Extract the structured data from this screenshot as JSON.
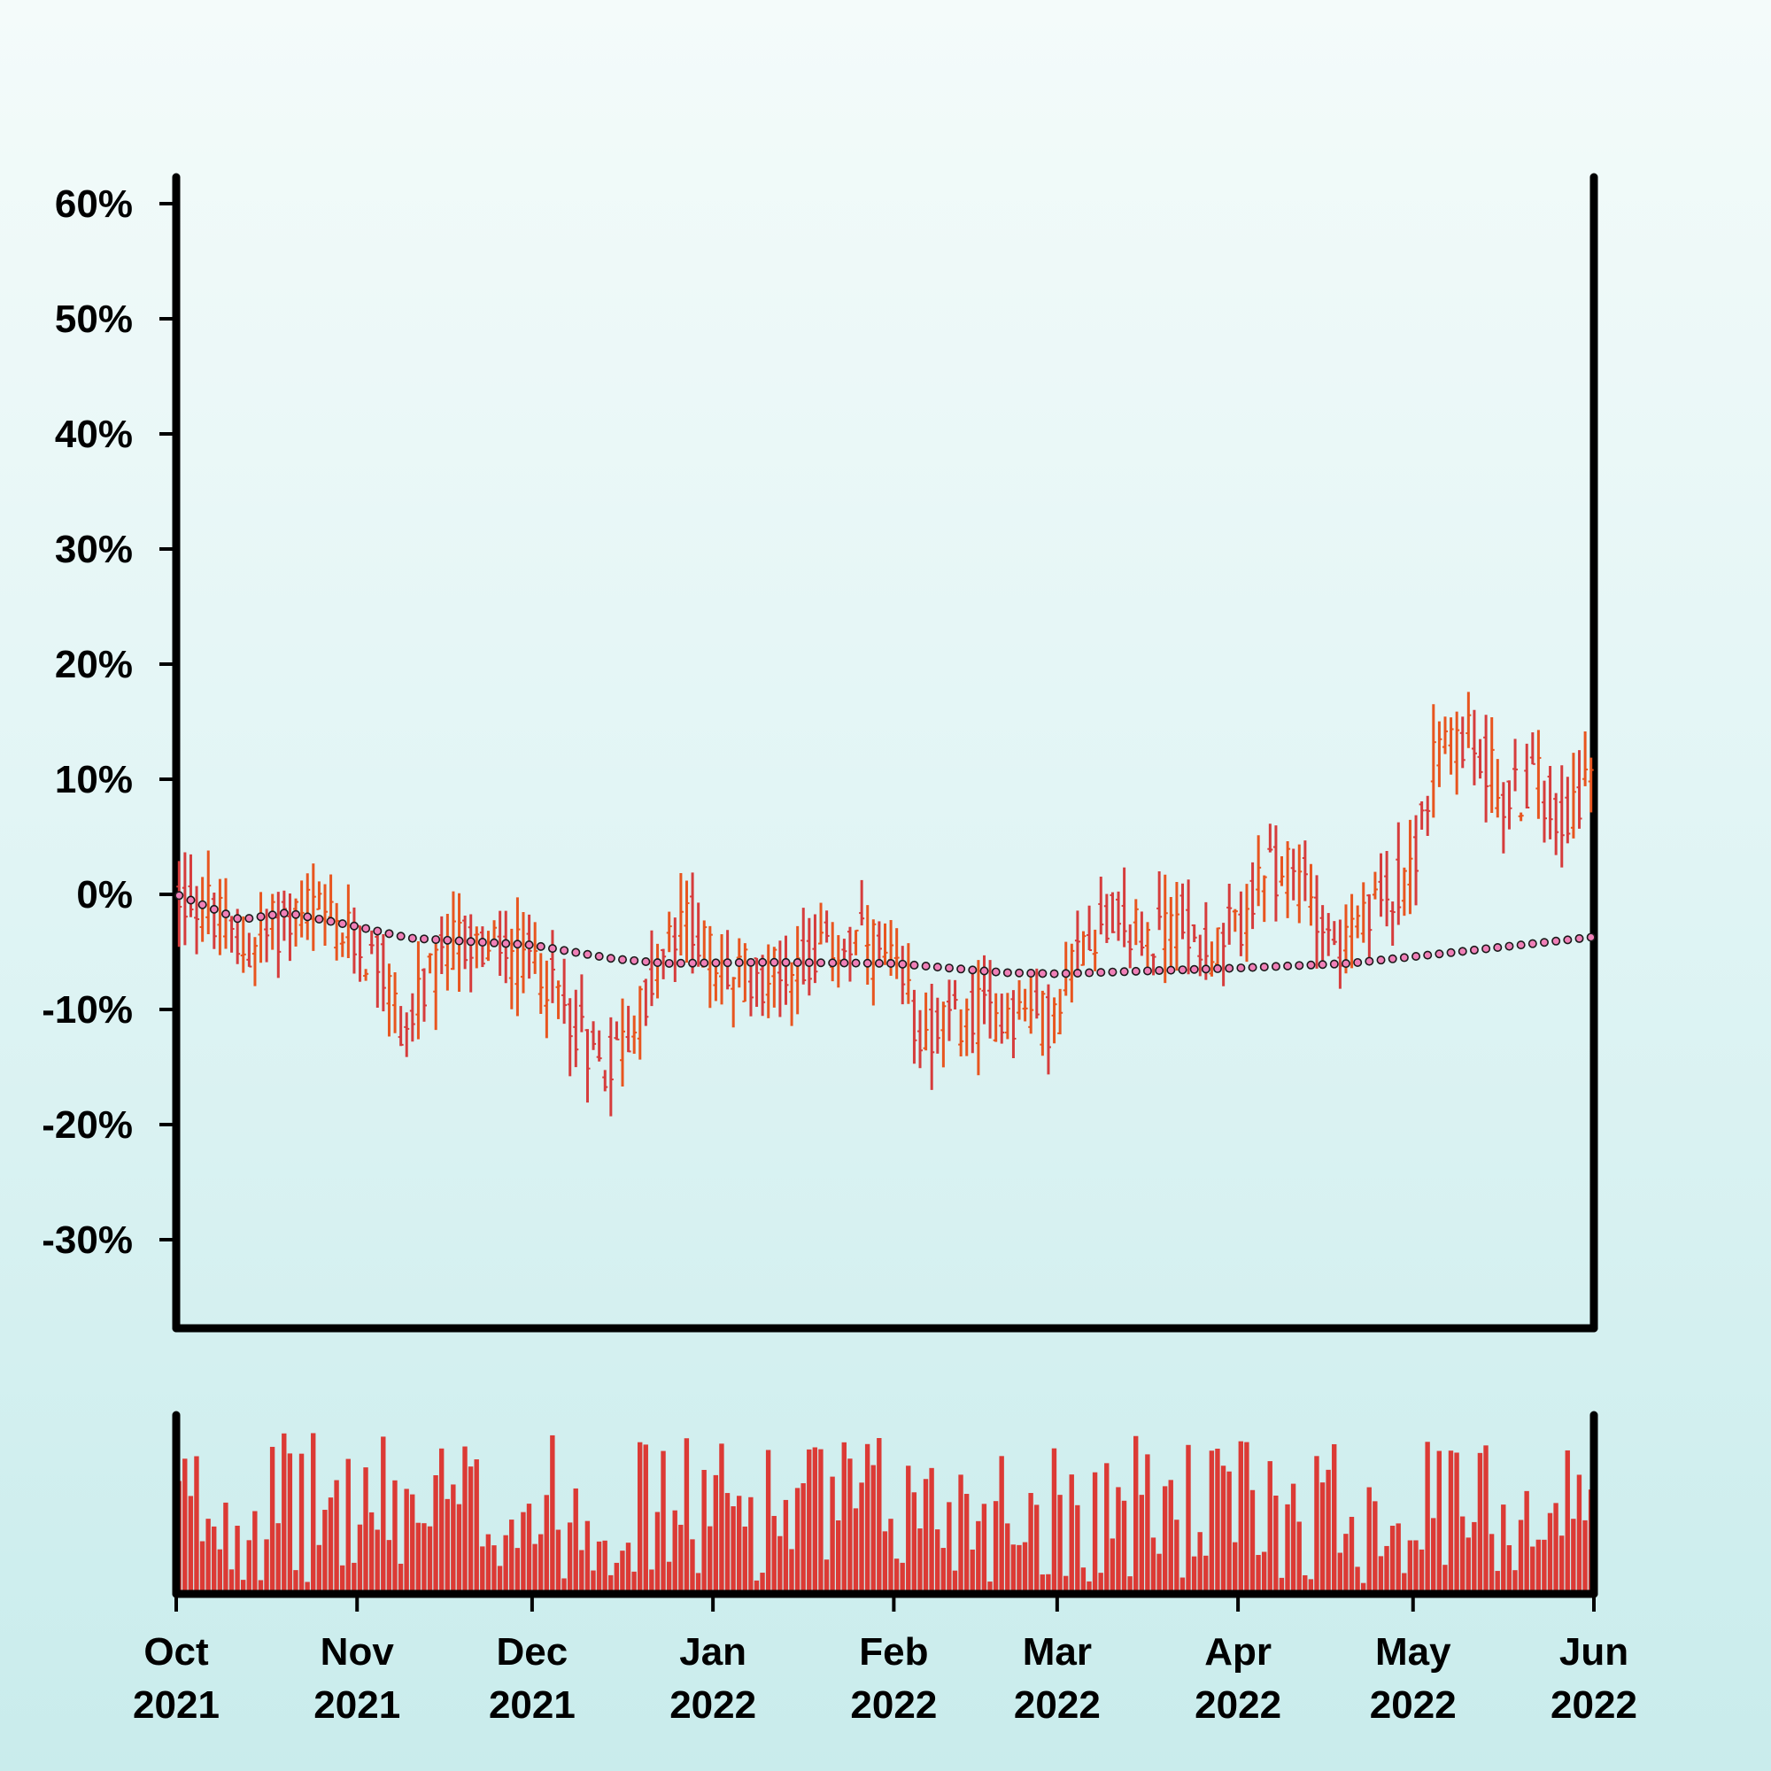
{
  "chart_data": {
    "type": "ohlc",
    "title": "",
    "xlabel": "",
    "ylabel": "",
    "x_range": [
      "2021-10-01",
      "2022-06-01"
    ],
    "ylim": [
      -37,
      62
    ],
    "y_ticks": [
      {
        "value": 60,
        "label": "60%"
      },
      {
        "value": 50,
        "label": "50%"
      },
      {
        "value": 40,
        "label": "40%"
      },
      {
        "value": 30,
        "label": "30%"
      },
      {
        "value": 20,
        "label": "20%"
      },
      {
        "value": 10,
        "label": "10%"
      },
      {
        "value": 0,
        "label": "0%"
      },
      {
        "value": -10,
        "label": "-10%"
      },
      {
        "value": -20,
        "label": "-20%"
      },
      {
        "value": -30,
        "label": "-30%"
      }
    ],
    "x_ticks": [
      {
        "date": "2021-10-01",
        "month": "Oct",
        "year": "2021"
      },
      {
        "date": "2021-11-01",
        "month": "Nov",
        "year": "2021"
      },
      {
        "date": "2021-12-01",
        "month": "Dec",
        "year": "2021"
      },
      {
        "date": "2022-01-01",
        "month": "Jan",
        "year": "2022"
      },
      {
        "date": "2022-02-01",
        "month": "Feb",
        "year": "2022"
      },
      {
        "date": "2022-03-01",
        "month": "Mar",
        "year": "2022"
      },
      {
        "date": "2022-04-01",
        "month": "Apr",
        "year": "2022"
      },
      {
        "date": "2022-05-01",
        "month": "May",
        "year": "2022"
      },
      {
        "date": "2022-06-01",
        "month": "Jun",
        "year": "2022"
      }
    ],
    "price_anchors": [
      {
        "date": "2021-10-01",
        "value": 0
      },
      {
        "date": "2021-10-06",
        "value": -1
      },
      {
        "date": "2021-10-12",
        "value": -5
      },
      {
        "date": "2021-10-20",
        "value": -2
      },
      {
        "date": "2021-10-24",
        "value": -1
      },
      {
        "date": "2021-10-28",
        "value": -3
      },
      {
        "date": "2021-11-05",
        "value": -6
      },
      {
        "date": "2021-11-09",
        "value": -12
      },
      {
        "date": "2021-11-13",
        "value": -8
      },
      {
        "date": "2021-11-18",
        "value": -4
      },
      {
        "date": "2021-11-25",
        "value": -5
      },
      {
        "date": "2021-12-02",
        "value": -6
      },
      {
        "date": "2021-12-07",
        "value": -10
      },
      {
        "date": "2021-12-13",
        "value": -15
      },
      {
        "date": "2021-12-18",
        "value": -12
      },
      {
        "date": "2021-12-24",
        "value": -5
      },
      {
        "date": "2021-12-28",
        "value": -2
      },
      {
        "date": "2022-01-02",
        "value": -7
      },
      {
        "date": "2022-01-10",
        "value": -7
      },
      {
        "date": "2022-01-20",
        "value": -5
      },
      {
        "date": "2022-01-27",
        "value": -4
      },
      {
        "date": "2022-02-01",
        "value": -7
      },
      {
        "date": "2022-02-06",
        "value": -12
      },
      {
        "date": "2022-02-12",
        "value": -11
      },
      {
        "date": "2022-02-20",
        "value": -10
      },
      {
        "date": "2022-03-01",
        "value": -11
      },
      {
        "date": "2022-03-05",
        "value": -4
      },
      {
        "date": "2022-03-10",
        "value": -2
      },
      {
        "date": "2022-03-17",
        "value": -4
      },
      {
        "date": "2022-03-22",
        "value": -2
      },
      {
        "date": "2022-03-28",
        "value": -5
      },
      {
        "date": "2022-04-02",
        "value": -2
      },
      {
        "date": "2022-04-07",
        "value": 2
      },
      {
        "date": "2022-04-13",
        "value": 1
      },
      {
        "date": "2022-04-18",
        "value": -5
      },
      {
        "date": "2022-04-24",
        "value": -2
      },
      {
        "date": "2022-05-01",
        "value": 3
      },
      {
        "date": "2022-05-05",
        "value": 12
      },
      {
        "date": "2022-05-09",
        "value": 14
      },
      {
        "date": "2022-05-13",
        "value": 12
      },
      {
        "date": "2022-05-17",
        "value": 8
      },
      {
        "date": "2022-05-22",
        "value": 10
      },
      {
        "date": "2022-05-26",
        "value": 7
      },
      {
        "date": "2022-06-01",
        "value": 10
      }
    ],
    "moving_average_anchors": [
      {
        "date": "2021-10-01",
        "value": 0
      },
      {
        "date": "2021-10-12",
        "value": -2.2
      },
      {
        "date": "2021-10-20",
        "value": -1.6
      },
      {
        "date": "2021-11-01",
        "value": -2.8
      },
      {
        "date": "2021-11-10",
        "value": -3.8
      },
      {
        "date": "2021-12-01",
        "value": -4.4
      },
      {
        "date": "2021-12-15",
        "value": -5.6
      },
      {
        "date": "2021-12-24",
        "value": -6.0
      },
      {
        "date": "2022-01-10",
        "value": -5.9
      },
      {
        "date": "2022-02-01",
        "value": -6.0
      },
      {
        "date": "2022-02-20",
        "value": -6.8
      },
      {
        "date": "2022-03-01",
        "value": -6.9
      },
      {
        "date": "2022-04-01",
        "value": -6.4
      },
      {
        "date": "2022-04-20",
        "value": -6.0
      },
      {
        "date": "2022-05-05",
        "value": -5.2
      },
      {
        "date": "2022-06-01",
        "value": -3.7
      }
    ],
    "series": [
      {
        "kind": "ohlc",
        "color": "#e8551f",
        "color_down": "#d63c3c"
      },
      {
        "kind": "moving-average",
        "color": "#1a1a1a",
        "marker_fill": "#f080b8"
      },
      {
        "kind": "volume",
        "color": "#dc3a35"
      }
    ],
    "grid": false,
    "legend": "none"
  }
}
